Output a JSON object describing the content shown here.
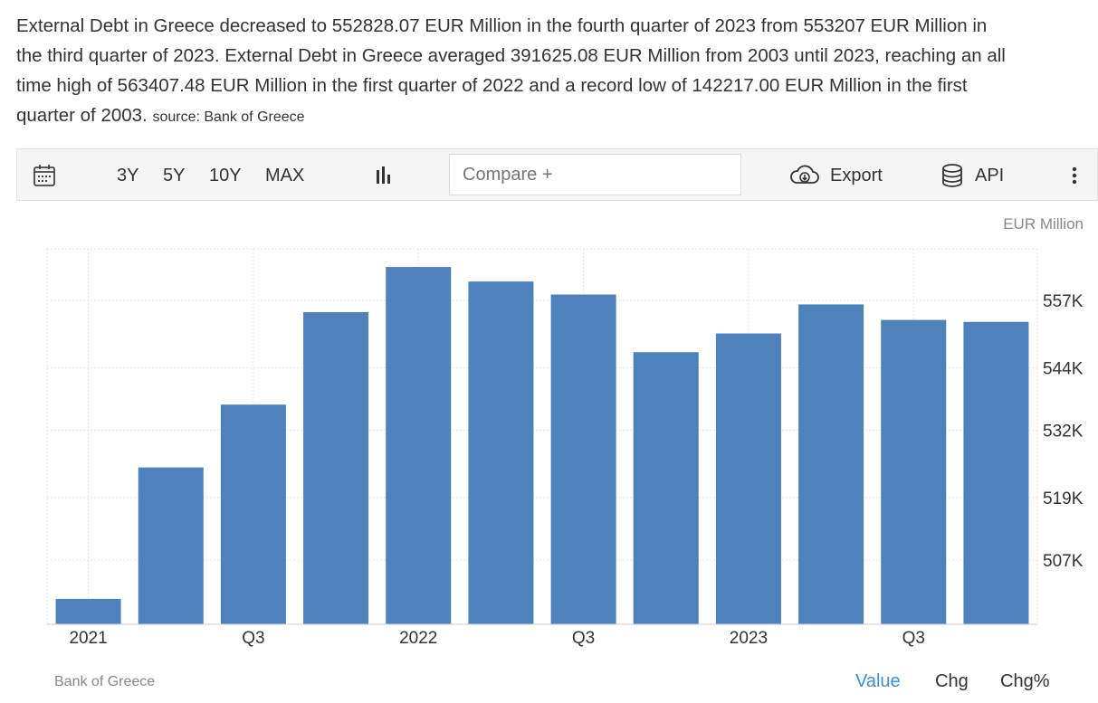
{
  "description": {
    "lines": [
      "External Debt in Greece decreased to 552828.07 EUR Million in the fourth quarter of 2023 from 553207 EUR Million in",
      "the third quarter of 2023. External Debt in Greece averaged 391625.08 EUR Million from 2003 until 2023, reaching an all",
      "time high of 563407.48 EUR Million in the first quarter of 2022 and a record low of 142217.00 EUR Million in the first",
      "quarter of 2003."
    ],
    "source_label": "source: Bank of Greece"
  },
  "toolbar": {
    "ranges": [
      "3Y",
      "5Y",
      "10Y",
      "MAX"
    ],
    "compare_placeholder": "Compare +",
    "export_label": "Export",
    "api_label": "API"
  },
  "unit_label": "EUR Million",
  "footer": {
    "source": "Bank of Greece",
    "tabs": [
      "Value",
      "Chg",
      "Chg%"
    ],
    "active_tab": "Value"
  },
  "colors": {
    "bar": "#4f81bd",
    "grid": "#e6e6e6",
    "active_tab": "#3a8fd8"
  },
  "chart_data": {
    "type": "bar",
    "categories": [
      "2021 Q1",
      "2021 Q2",
      "2021 Q3",
      "2021 Q4",
      "2022 Q1",
      "2022 Q2",
      "2022 Q3",
      "2022 Q4",
      "2023 Q1",
      "2023 Q2",
      "2023 Q3",
      "2023 Q4"
    ],
    "x_tick_labels": [
      "2021",
      "",
      "Q3",
      "",
      "2022",
      "",
      "Q3",
      "",
      "2023",
      "",
      "Q3",
      ""
    ],
    "values": [
      499500,
      524800,
      536900,
      554700,
      563407.48,
      560600,
      558100,
      547000,
      550600,
      556200,
      553207,
      552828.07
    ],
    "y_ticks": [
      507000,
      519000,
      532000,
      544000,
      557000
    ],
    "y_tick_labels": [
      "507K",
      "519K",
      "532K",
      "544K",
      "557K"
    ],
    "ylim": [
      494600,
      566900
    ],
    "grid": true
  }
}
